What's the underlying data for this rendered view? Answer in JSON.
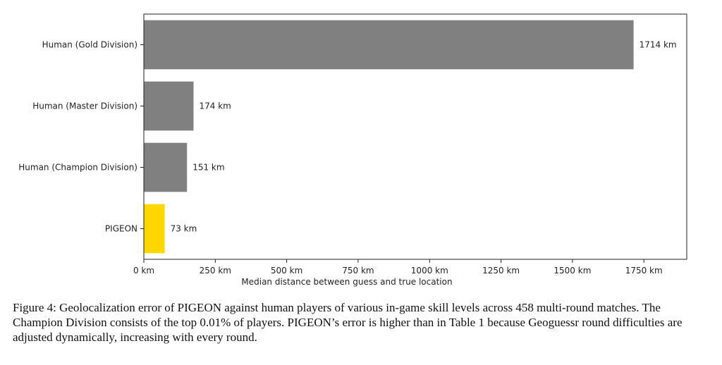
{
  "chart_data": {
    "type": "bar",
    "orientation": "horizontal",
    "categories": [
      "Human (Gold Division)",
      "Human (Master Division)",
      "Human (Champion Division)",
      "PIGEON"
    ],
    "values": [
      1714,
      174,
      151,
      73
    ],
    "data_labels": [
      "1714 km",
      "174 km",
      "151 km",
      "73 km"
    ],
    "bar_colors": [
      "#808080",
      "#808080",
      "#808080",
      "#ffd700"
    ],
    "xlabel": "Median distance between guess and true location",
    "ylabel": "",
    "xlim": [
      0,
      1900
    ],
    "xticks": [
      0,
      250,
      500,
      750,
      1000,
      1250,
      1500,
      1750
    ],
    "xtick_labels": [
      "0 km",
      "250 km",
      "500 km",
      "750 km",
      "1000 km",
      "1250 km",
      "1500 km",
      "1750 km"
    ],
    "grid": false
  },
  "caption": "Figure 4: Geolocalization error of PIGEON against human players of various in-game skill levels across 458 multi-round matches. The Champion Division consists of the top 0.01% of players. PIGEON’s error is higher than in Table 1 because Geoguessr round difficulties are adjusted dynamically, increasing with every round."
}
